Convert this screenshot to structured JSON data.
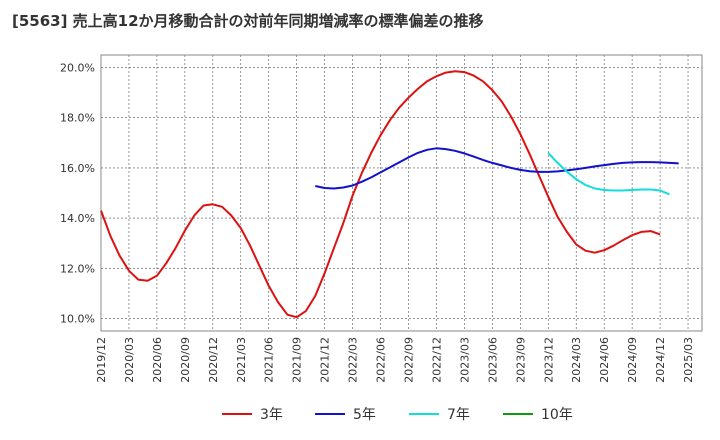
{
  "title": "[5563]  売上高12か月移動合計の対前年同期増減率の標準偏差の推移",
  "chart_data": {
    "type": "line",
    "title": "[5563]  売上高12か月移動合計の対前年同期増減率の標準偏差の推移",
    "xlabel": "",
    "ylabel": "",
    "x_ticks": [
      "2019/12",
      "2020/03",
      "2020/06",
      "2020/09",
      "2020/12",
      "2021/03",
      "2021/06",
      "2021/09",
      "2021/12",
      "2022/03",
      "2022/06",
      "2022/09",
      "2022/12",
      "2023/03",
      "2023/06",
      "2023/09",
      "2023/12",
      "2024/03",
      "2024/06",
      "2024/09",
      "2024/12",
      "2025/03"
    ],
    "y_ticks": [
      "10.0%",
      "12.0%",
      "14.0%",
      "16.0%",
      "18.0%",
      "20.0%"
    ],
    "y_tick_values": [
      10,
      12,
      14,
      16,
      18,
      20
    ],
    "ylim": [
      9.5,
      20.5
    ],
    "grid": true,
    "legend_position": "bottom",
    "series": [
      {
        "name": "3年",
        "color": "#dd1111",
        "start": "2019/12",
        "values": [
          14.3,
          13.3,
          12.5,
          11.9,
          11.55,
          11.5,
          11.7,
          12.2,
          12.8,
          13.5,
          14.1,
          14.5,
          14.55,
          14.45,
          14.1,
          13.6,
          12.9,
          12.1,
          11.3,
          10.65,
          10.15,
          10.05,
          10.3,
          10.9,
          11.8,
          12.8,
          13.8,
          14.9,
          15.8,
          16.6,
          17.3,
          17.9,
          18.4,
          18.8,
          19.15,
          19.45,
          19.65,
          19.8,
          19.85,
          19.82,
          19.68,
          19.45,
          19.1,
          18.65,
          18.05,
          17.35,
          16.55,
          15.7,
          14.85,
          14.05,
          13.45,
          12.95,
          12.7,
          12.62,
          12.72,
          12.9,
          13.12,
          13.32,
          13.45,
          13.48,
          13.35
        ]
      },
      {
        "name": "5年",
        "color": "#1111cc",
        "start": "2021/11",
        "values": [
          15.28,
          15.2,
          15.18,
          15.22,
          15.3,
          15.45,
          15.62,
          15.82,
          16.02,
          16.22,
          16.42,
          16.6,
          16.72,
          16.78,
          16.75,
          16.68,
          16.58,
          16.45,
          16.32,
          16.2,
          16.1,
          16.0,
          15.92,
          15.87,
          15.84,
          15.84,
          15.86,
          15.9,
          15.95,
          16.0,
          16.06,
          16.11,
          16.16,
          16.2,
          16.22,
          16.23,
          16.23,
          16.22,
          16.2,
          16.18
        ]
      },
      {
        "name": "7年",
        "color": "#11dddd",
        "start": "2023/12",
        "values": [
          16.6,
          16.2,
          15.85,
          15.55,
          15.32,
          15.18,
          15.12,
          15.1,
          15.1,
          15.12,
          15.14,
          15.14,
          15.1,
          14.95
        ]
      },
      {
        "name": "10年",
        "color": "#119911",
        "start": "2025/03",
        "values": []
      }
    ]
  }
}
